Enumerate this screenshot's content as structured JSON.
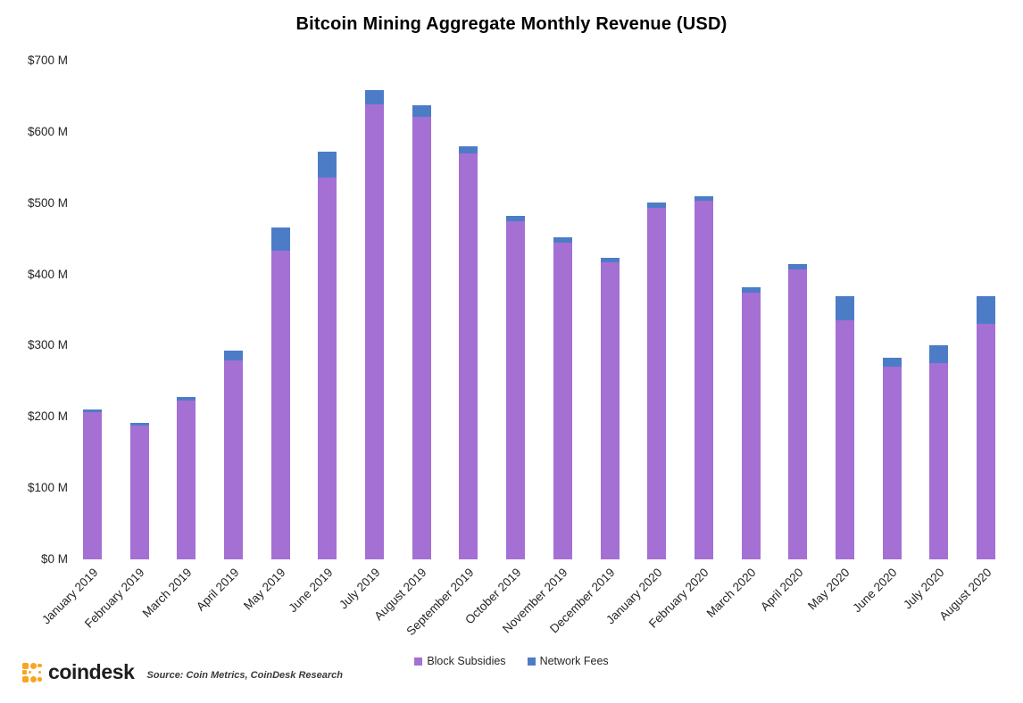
{
  "title": "Bitcoin Mining Aggregate Monthly Revenue (USD)",
  "chart_data": {
    "type": "bar",
    "stacked": true,
    "title": "Bitcoin Mining Aggregate Monthly Revenue (USD)",
    "unit": "USD millions",
    "categories": [
      "January 2019",
      "February 2019",
      "March 2019",
      "April 2019",
      "May 2019",
      "June 2019",
      "July 2019",
      "August 2019",
      "September 2019",
      "October 2019",
      "November 2019",
      "December 2019",
      "January 2020",
      "February 2020",
      "March 2020",
      "April 2020",
      "May 2020",
      "June 2020",
      "July 2020",
      "August 2020"
    ],
    "series": [
      {
        "name": "Block Subsidies",
        "color": "#A470D4",
        "values": [
          207,
          188,
          223,
          279,
          433,
          536,
          639,
          621,
          570,
          474,
          444,
          417,
          493,
          503,
          374,
          407,
          336,
          271,
          276,
          331
        ]
      },
      {
        "name": "Network Fees",
        "color": "#4D7CC7",
        "values": [
          4,
          4,
          5,
          14,
          33,
          36,
          20,
          16,
          10,
          8,
          8,
          6,
          8,
          7,
          8,
          8,
          33,
          12,
          24,
          38
        ]
      }
    ],
    "y_axis": {
      "min": 0,
      "max": 700,
      "tick_step": 100,
      "tick_labels": [
        "$0 M",
        "$100 M",
        "$200 M",
        "$300 M",
        "$400 M",
        "$500 M",
        "$600 M",
        "$700 M"
      ]
    },
    "grid": false,
    "legend_position": "bottom"
  },
  "footer": {
    "logo_text": "coindesk",
    "logo_color": "#F7A521",
    "source": "Source: Coin Metrics, CoinDesk Research"
  }
}
